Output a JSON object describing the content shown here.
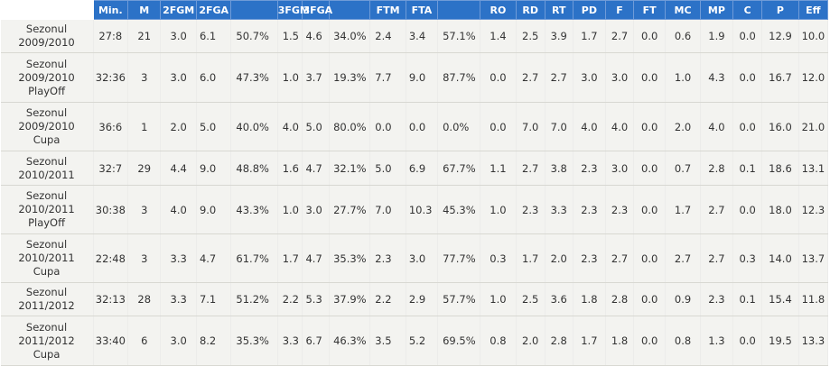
{
  "columns": [
    "",
    "Min.",
    "M",
    "2FGM",
    "2FGA",
    "",
    "3FGM",
    "3FGA",
    "",
    "FTM",
    "FTA",
    "",
    "RO",
    "RD",
    "RT",
    "PD",
    "F",
    "FT",
    "MC",
    "MP",
    "C",
    "P",
    "Eff"
  ],
  "rows": [
    {
      "season": "Sezonul 2009/2010",
      "values": [
        "27:8",
        "21",
        "3.0",
        "6.1",
        "50.7%",
        "1.5",
        "4.6",
        "34.0%",
        "2.4",
        "3.4",
        "57.1%",
        "1.4",
        "2.5",
        "3.9",
        "1.7",
        "2.7",
        "0.0",
        "0.6",
        "1.9",
        "0.0",
        "12.9",
        "10.0"
      ]
    },
    {
      "season": "Sezonul 2009/2010 PlayOff",
      "values": [
        "32:36",
        "3",
        "3.0",
        "6.0",
        "47.3%",
        "1.0",
        "3.7",
        "19.3%",
        "7.7",
        "9.0",
        "87.7%",
        "0.0",
        "2.7",
        "2.7",
        "3.0",
        "3.0",
        "0.0",
        "1.0",
        "4.3",
        "0.0",
        "16.7",
        "12.0"
      ]
    },
    {
      "season": "Sezonul 2009/2010 Cupa",
      "values": [
        "36:6",
        "1",
        "2.0",
        "5.0",
        "40.0%",
        "4.0",
        "5.0",
        "80.0%",
        "0.0",
        "0.0",
        "0.0%",
        "0.0",
        "7.0",
        "7.0",
        "4.0",
        "4.0",
        "0.0",
        "2.0",
        "4.0",
        "0.0",
        "16.0",
        "21.0"
      ]
    },
    {
      "season": "Sezonul 2010/2011",
      "values": [
        "32:7",
        "29",
        "4.4",
        "9.0",
        "48.8%",
        "1.6",
        "4.7",
        "32.1%",
        "5.0",
        "6.9",
        "67.7%",
        "1.1",
        "2.7",
        "3.8",
        "2.3",
        "3.0",
        "0.0",
        "0.7",
        "2.8",
        "0.1",
        "18.6",
        "13.1"
      ]
    },
    {
      "season": "Sezonul 2010/2011 PlayOff",
      "values": [
        "30:38",
        "3",
        "4.0",
        "9.0",
        "43.3%",
        "1.0",
        "3.0",
        "27.7%",
        "7.0",
        "10.3",
        "45.3%",
        "1.0",
        "2.3",
        "3.3",
        "2.3",
        "2.3",
        "0.0",
        "1.7",
        "2.7",
        "0.0",
        "18.0",
        "12.3"
      ]
    },
    {
      "season": "Sezonul 2010/2011 Cupa",
      "values": [
        "22:48",
        "3",
        "3.3",
        "4.7",
        "61.7%",
        "1.7",
        "4.7",
        "35.3%",
        "2.3",
        "3.0",
        "77.7%",
        "0.3",
        "1.7",
        "2.0",
        "2.3",
        "2.7",
        "0.0",
        "2.7",
        "2.7",
        "0.3",
        "14.0",
        "13.7"
      ]
    },
    {
      "season": "Sezonul 2011/2012",
      "values": [
        "32:13",
        "28",
        "3.3",
        "7.1",
        "51.2%",
        "2.2",
        "5.3",
        "37.9%",
        "2.2",
        "2.9",
        "57.7%",
        "1.0",
        "2.5",
        "3.6",
        "1.8",
        "2.8",
        "0.0",
        "0.9",
        "2.3",
        "0.1",
        "15.4",
        "11.8"
      ]
    },
    {
      "season": "Sezonul 2011/2012 Cupa",
      "values": [
        "33:40",
        "6",
        "3.0",
        "8.2",
        "35.3%",
        "3.3",
        "6.7",
        "46.3%",
        "3.5",
        "5.2",
        "69.5%",
        "0.8",
        "2.0",
        "2.8",
        "1.7",
        "1.8",
        "0.0",
        "0.8",
        "1.3",
        "0.0",
        "19.5",
        "13.3"
      ]
    }
  ]
}
